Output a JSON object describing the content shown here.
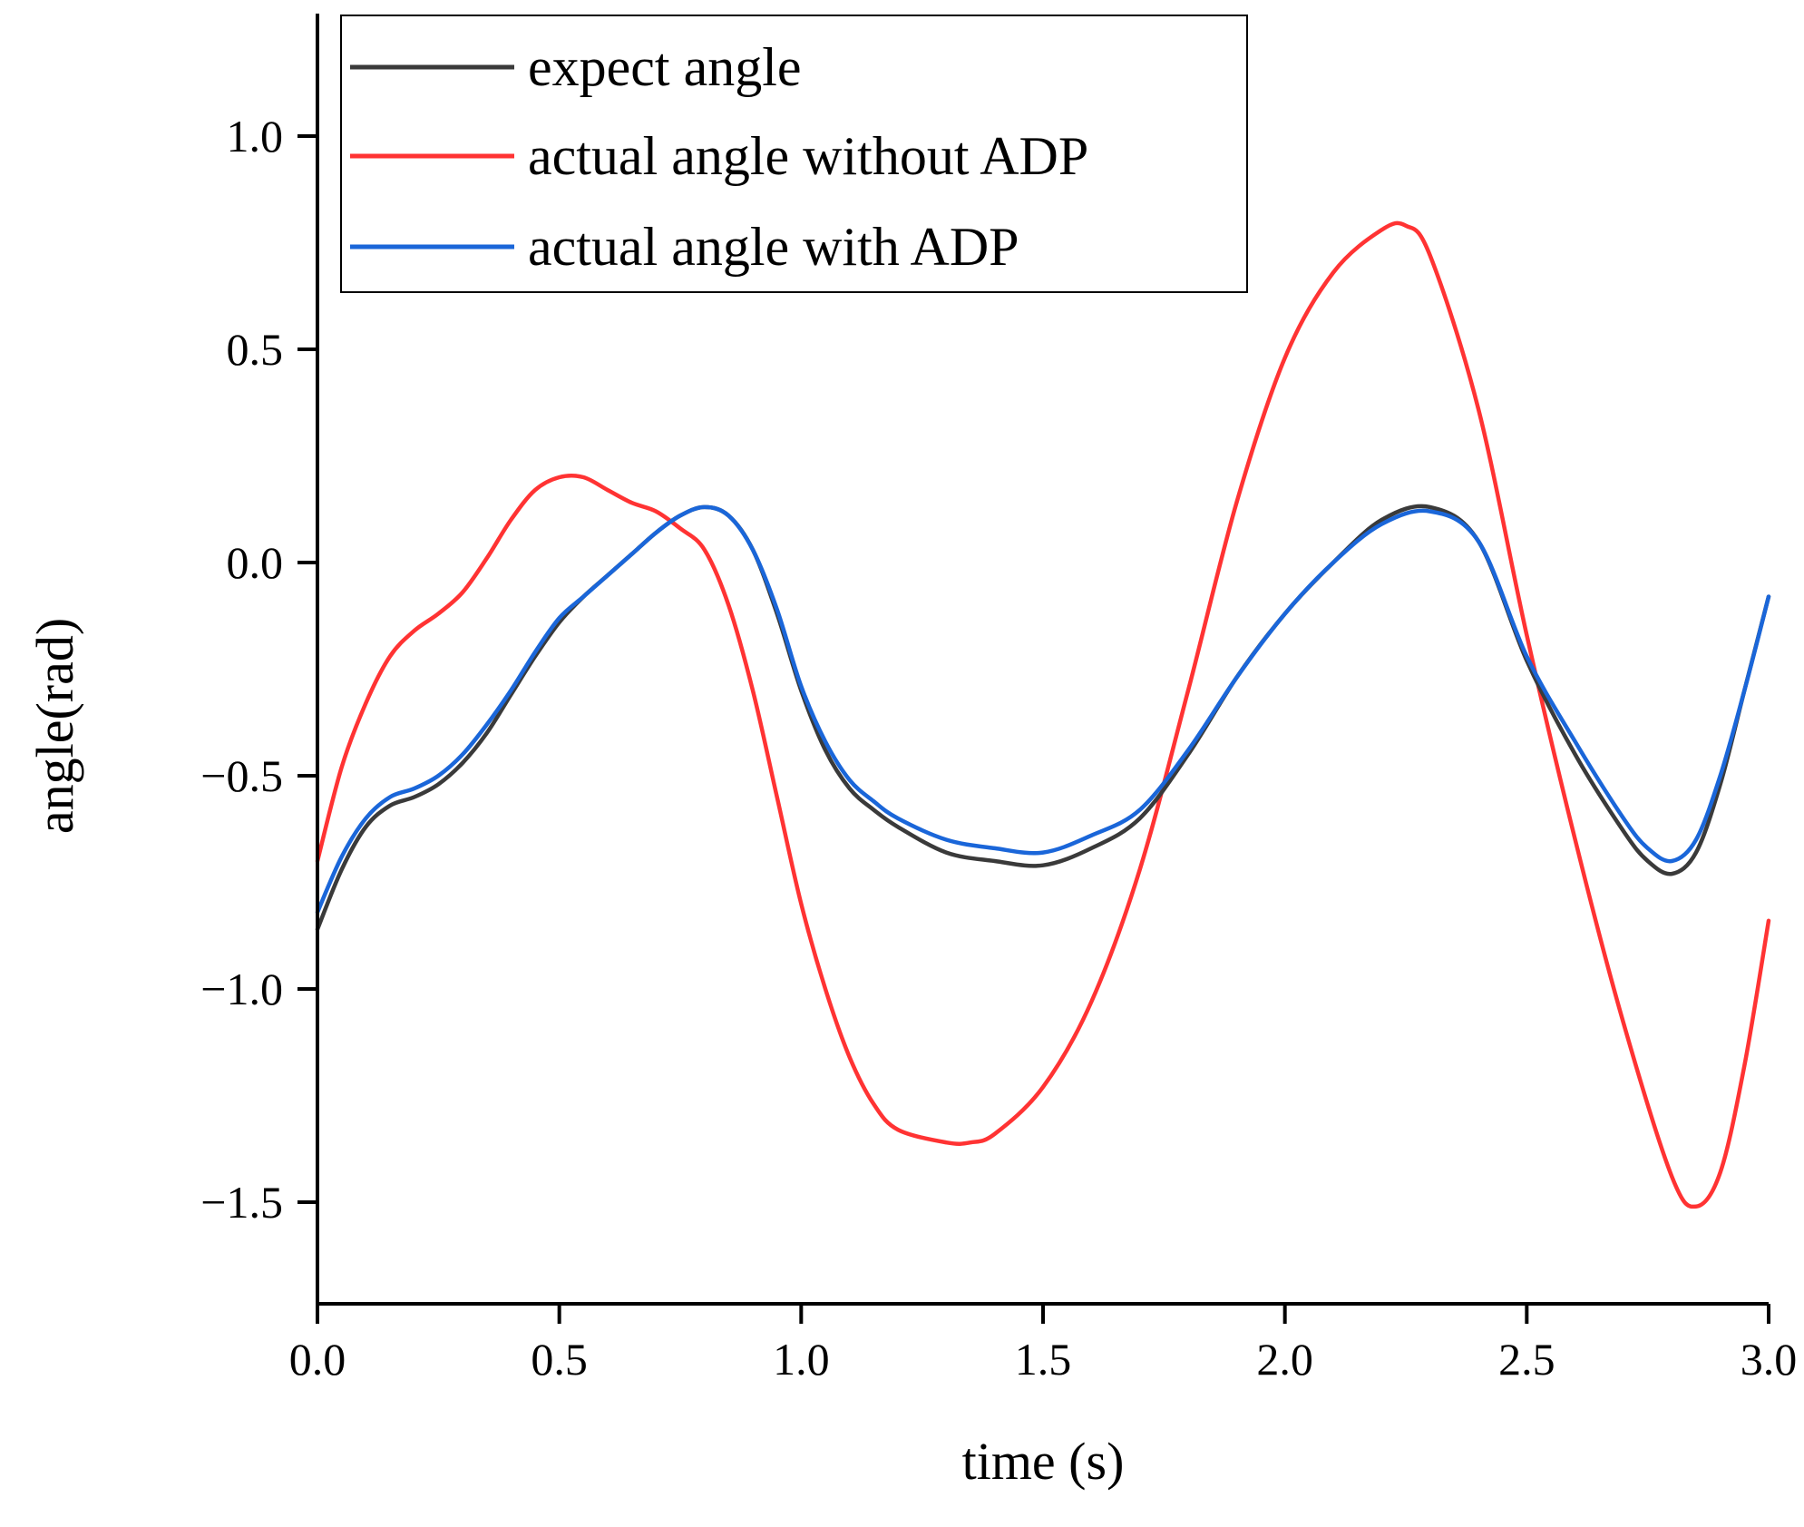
{
  "chart_data": {
    "type": "line",
    "title": "",
    "xlabel": "time (s)",
    "ylabel": "angle(rad)",
    "xlim": [
      0.0,
      3.0
    ],
    "ylim": [
      -1.75,
      1.3
    ],
    "x_ticks": [
      0.0,
      0.5,
      1.0,
      1.5,
      2.0,
      2.5,
      3.0
    ],
    "x_tick_labels": [
      "0.0",
      "0.5",
      "1.0",
      "1.5",
      "2.0",
      "2.5",
      "3.0"
    ],
    "y_ticks": [
      1.0,
      0.5,
      0.0,
      -0.5,
      -1.0,
      -1.5
    ],
    "y_tick_labels": [
      "1.0",
      "0.5",
      "0.0",
      "−0.5",
      "−1.0",
      "−1.5"
    ],
    "grid": false,
    "legend_position": "top-left",
    "series": [
      {
        "name": "expect angle",
        "color": "#3a3a3a",
        "x": [
          0.0,
          0.05,
          0.1,
          0.15,
          0.2,
          0.25,
          0.3,
          0.35,
          0.4,
          0.45,
          0.5,
          0.55,
          0.6,
          0.65,
          0.7,
          0.75,
          0.8,
          0.85,
          0.9,
          0.95,
          1.0,
          1.05,
          1.1,
          1.15,
          1.2,
          1.3,
          1.4,
          1.5,
          1.6,
          1.7,
          1.8,
          1.9,
          2.0,
          2.1,
          2.2,
          2.3,
          2.4,
          2.5,
          2.6,
          2.7,
          2.75,
          2.8,
          2.85,
          2.9,
          2.95,
          3.0
        ],
        "y": [
          -0.86,
          -0.72,
          -0.62,
          -0.57,
          -0.55,
          -0.52,
          -0.47,
          -0.4,
          -0.31,
          -0.22,
          -0.14,
          -0.08,
          -0.03,
          0.02,
          0.07,
          0.11,
          0.13,
          0.11,
          0.03,
          -0.12,
          -0.3,
          -0.44,
          -0.53,
          -0.58,
          -0.62,
          -0.68,
          -0.7,
          -0.71,
          -0.67,
          -0.6,
          -0.45,
          -0.27,
          -0.12,
          0.0,
          0.1,
          0.13,
          0.05,
          -0.23,
          -0.45,
          -0.63,
          -0.7,
          -0.73,
          -0.68,
          -0.52,
          -0.3,
          -0.08
        ]
      },
      {
        "name": "actual angle without ADP",
        "color": "#ff3333",
        "x": [
          0.0,
          0.05,
          0.1,
          0.15,
          0.2,
          0.25,
          0.3,
          0.35,
          0.4,
          0.45,
          0.5,
          0.55,
          0.6,
          0.65,
          0.7,
          0.75,
          0.8,
          0.85,
          0.9,
          0.95,
          1.0,
          1.05,
          1.1,
          1.15,
          1.2,
          1.3,
          1.35,
          1.4,
          1.5,
          1.6,
          1.7,
          1.8,
          1.9,
          2.0,
          2.1,
          2.2,
          2.25,
          2.3,
          2.4,
          2.5,
          2.6,
          2.7,
          2.8,
          2.85,
          2.9,
          2.95,
          3.0
        ],
        "y": [
          -0.7,
          -0.48,
          -0.33,
          -0.22,
          -0.16,
          -0.12,
          -0.07,
          0.01,
          0.1,
          0.17,
          0.2,
          0.2,
          0.17,
          0.14,
          0.12,
          0.08,
          0.03,
          -0.1,
          -0.3,
          -0.55,
          -0.8,
          -1.0,
          -1.16,
          -1.27,
          -1.33,
          -1.36,
          -1.36,
          -1.34,
          -1.23,
          -1.03,
          -0.72,
          -0.3,
          0.14,
          0.48,
          0.68,
          0.78,
          0.79,
          0.72,
          0.36,
          -0.17,
          -0.65,
          -1.08,
          -1.44,
          -1.51,
          -1.43,
          -1.18,
          -0.84
        ]
      },
      {
        "name": "actual angle with ADP",
        "color": "#1a66d9",
        "x": [
          0.0,
          0.05,
          0.1,
          0.15,
          0.2,
          0.25,
          0.3,
          0.35,
          0.4,
          0.45,
          0.5,
          0.55,
          0.6,
          0.65,
          0.7,
          0.75,
          0.8,
          0.85,
          0.9,
          0.95,
          1.0,
          1.05,
          1.1,
          1.15,
          1.2,
          1.3,
          1.4,
          1.5,
          1.6,
          1.7,
          1.8,
          1.9,
          2.0,
          2.1,
          2.2,
          2.3,
          2.4,
          2.5,
          2.6,
          2.7,
          2.75,
          2.8,
          2.85,
          2.9,
          2.95,
          3.0
        ],
        "y": [
          -0.82,
          -0.69,
          -0.6,
          -0.55,
          -0.53,
          -0.5,
          -0.45,
          -0.38,
          -0.3,
          -0.21,
          -0.13,
          -0.08,
          -0.03,
          0.02,
          0.07,
          0.11,
          0.13,
          0.11,
          0.03,
          -0.11,
          -0.29,
          -0.42,
          -0.51,
          -0.56,
          -0.6,
          -0.65,
          -0.67,
          -0.68,
          -0.64,
          -0.58,
          -0.44,
          -0.27,
          -0.12,
          0.0,
          0.09,
          0.12,
          0.05,
          -0.22,
          -0.42,
          -0.6,
          -0.67,
          -0.7,
          -0.65,
          -0.5,
          -0.3,
          -0.08
        ]
      }
    ]
  }
}
